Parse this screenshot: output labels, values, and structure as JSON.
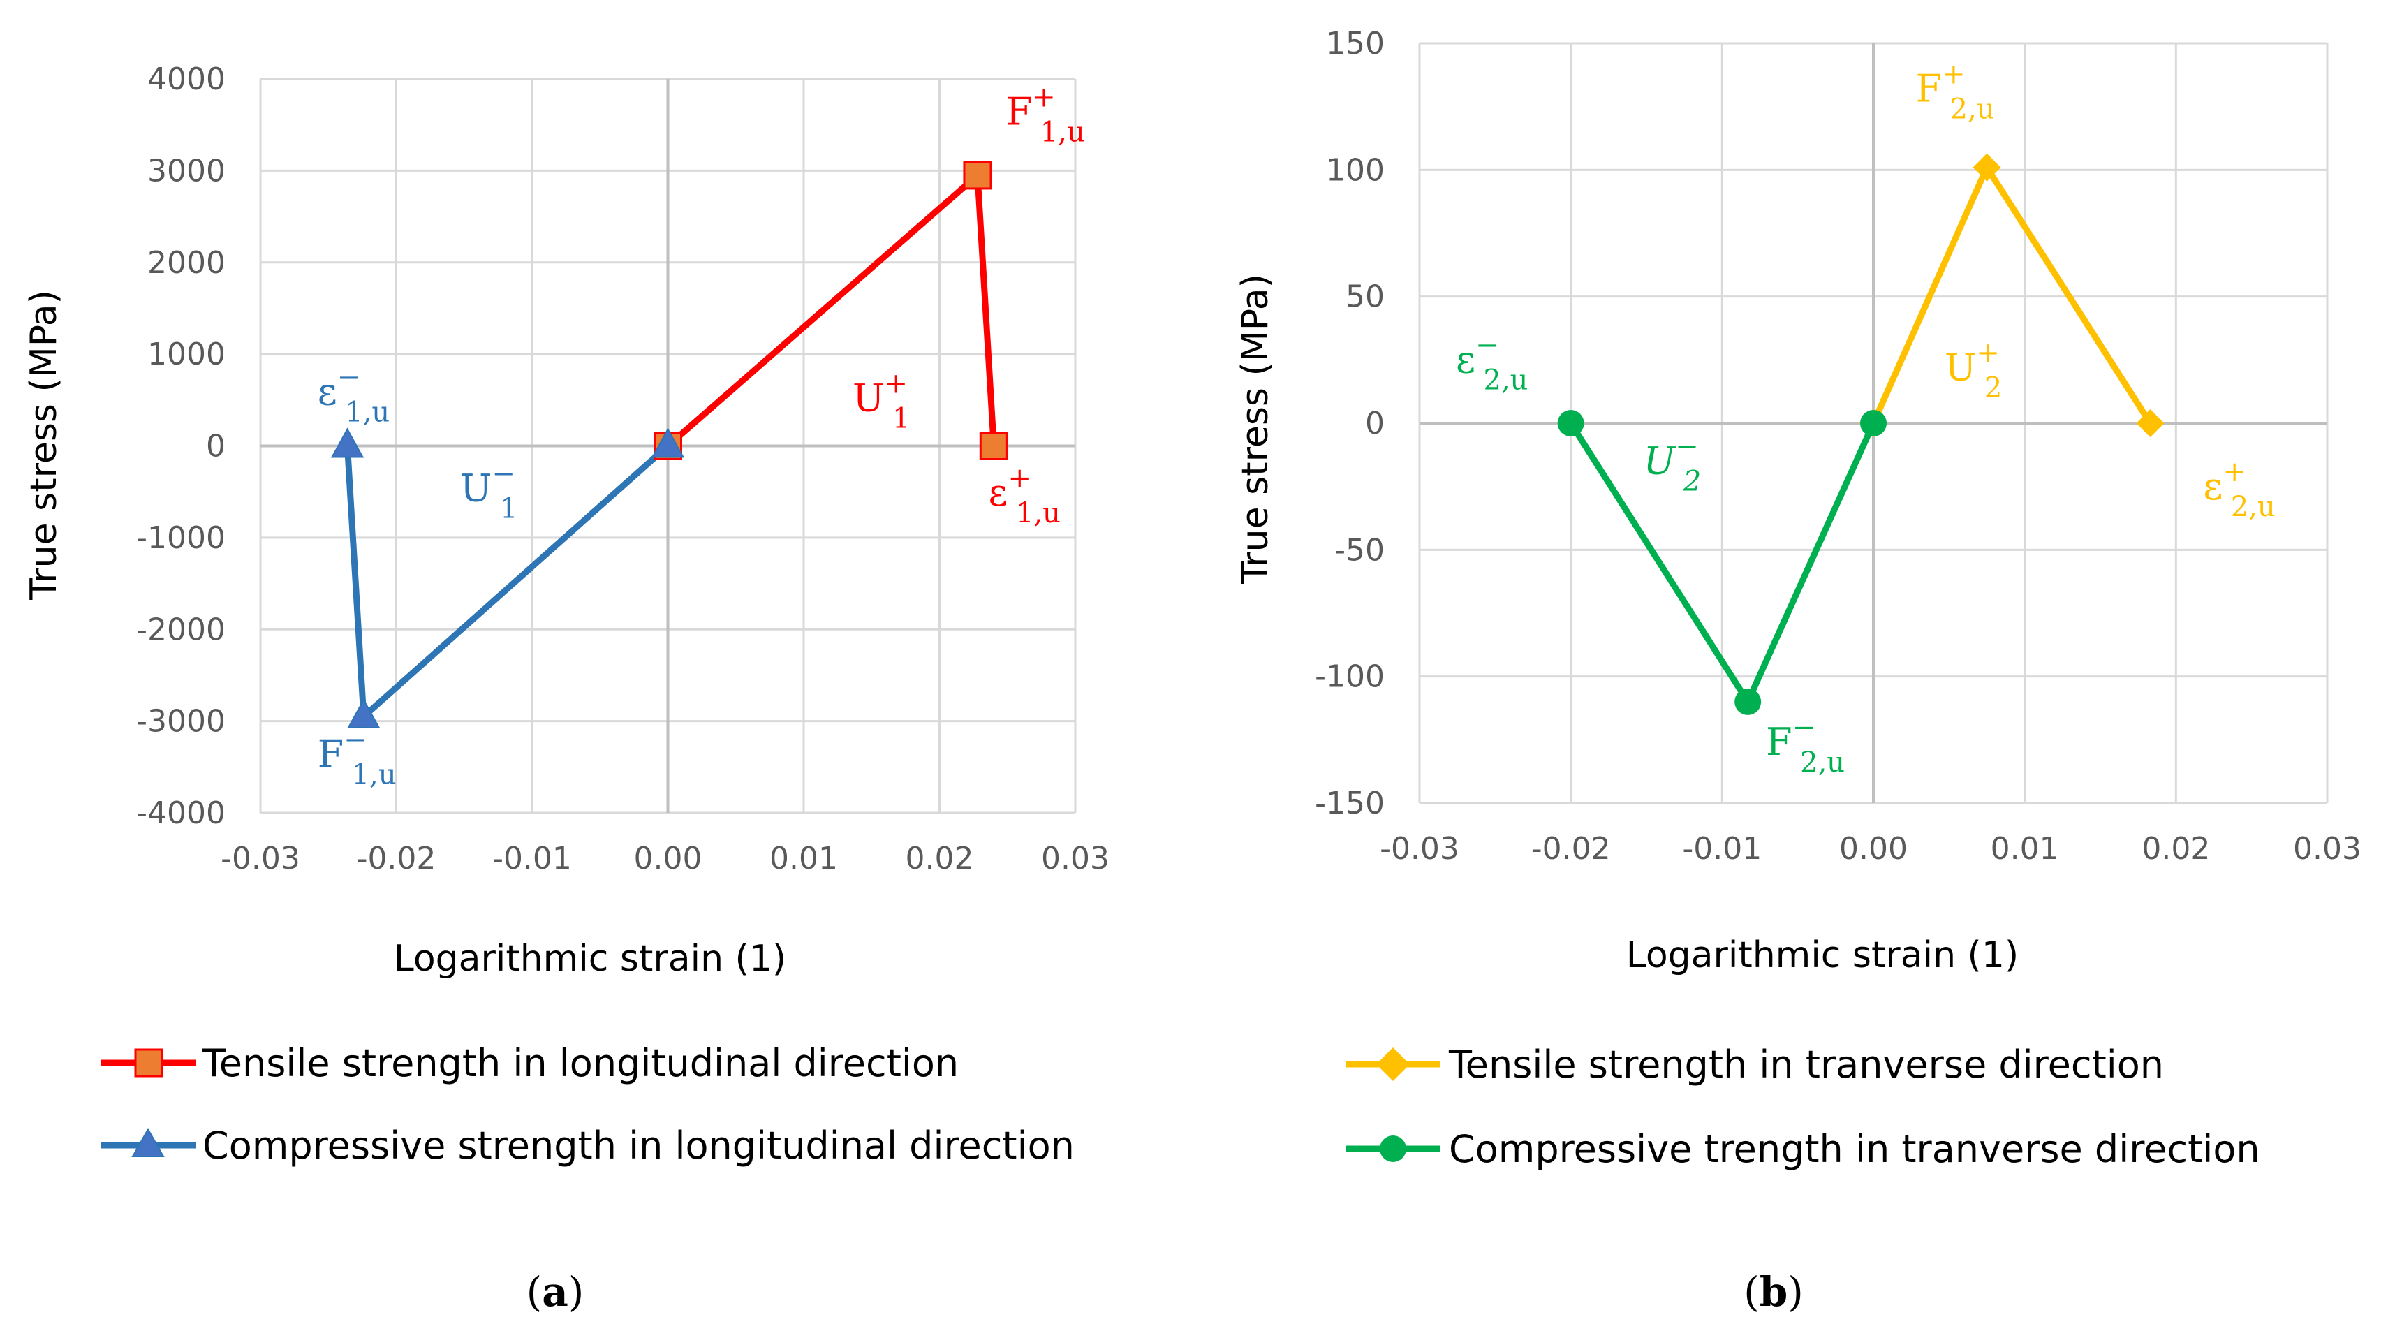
{
  "chart_data": [
    {
      "type": "line",
      "panel_label": "a",
      "xlabel": "Logarithmic strain (1)",
      "ylabel": "True stress (MPa)",
      "xlim": [
        -0.03,
        0.03
      ],
      "ylim": [
        -4000,
        4000
      ],
      "xticks": [
        -0.03,
        -0.02,
        -0.01,
        0.0,
        0.01,
        0.02,
        0.03
      ],
      "xtick_labels": [
        "-0.03",
        "-0.02",
        "-0.01",
        "0.00",
        "0.01",
        "0.02",
        "0.03"
      ],
      "yticks": [
        4000,
        3000,
        2000,
        1000,
        0,
        -1000,
        -2000,
        -3000,
        -4000
      ],
      "ytick_labels": [
        "4000",
        "3000",
        "2000",
        "1000",
        "0",
        "-1000",
        "-2000",
        "-3000",
        "-4000"
      ],
      "grid": true,
      "legend_position": "bottom",
      "series": [
        {
          "name": "Tensile strength in longitudinal direction",
          "color": "#ff0000",
          "marker": "square",
          "marker_color": "#ed7d31",
          "x": [
            0.0,
            0.0228,
            0.024
          ],
          "y": [
            0,
            2950,
            0
          ]
        },
        {
          "name": "Compressive strength in longitudinal direction",
          "color": "#2e75b6",
          "marker": "triangle",
          "marker_color": "#4472c4",
          "x": [
            0.0,
            -0.0224,
            -0.0236
          ],
          "y": [
            0,
            -2950,
            0
          ]
        }
      ],
      "annotations": [
        {
          "base": "F",
          "sub": "1,u",
          "sup": "+",
          "color": "#ff0000",
          "x": 0.0249,
          "y": 3500
        },
        {
          "base": "ε",
          "sub": "1,u",
          "sup": "+",
          "color": "#ff0000",
          "x": 0.0236,
          "y": -650
        },
        {
          "base": "U",
          "sub": "1",
          "sup": "+",
          "color": "#ff0000",
          "x": 0.0136,
          "y": 380
        },
        {
          "base": "ε",
          "sub": "1,u",
          "sup": "−",
          "color": "#2e75b6",
          "x": -0.0258,
          "y": 450
        },
        {
          "base": "U",
          "sub": "1",
          "sup": "−",
          "color": "#2e75b6",
          "x": -0.0153,
          "y": -600
        },
        {
          "base": "F",
          "sub": "1,u",
          "sup": "−",
          "color": "#2e75b6",
          "x": -0.0258,
          "y": -3500
        }
      ]
    },
    {
      "type": "line",
      "panel_label": "b",
      "xlabel": "Logarithmic strain (1)",
      "ylabel": "True stress (MPa)",
      "xlim": [
        -0.03,
        0.03
      ],
      "ylim": [
        -150,
        150
      ],
      "xticks": [
        -0.03,
        -0.02,
        -0.01,
        0.0,
        0.01,
        0.02,
        0.03
      ],
      "xtick_labels": [
        "-0.03",
        "-0.02",
        "-0.01",
        "0.00",
        "0.01",
        "0.02",
        "0.03"
      ],
      "yticks": [
        150,
        100,
        50,
        0,
        -50,
        -100,
        -150
      ],
      "ytick_labels": [
        "150",
        "100",
        "50",
        "0",
        "-50",
        "-100",
        "-150"
      ],
      "grid": true,
      "legend_position": "bottom",
      "series": [
        {
          "name": "Tensile strength in tranverse direction",
          "color": "#ffc000",
          "marker": "diamond",
          "marker_color": "#ffc000",
          "x": [
            0.0,
            0.0075,
            0.0183
          ],
          "y": [
            0,
            101,
            0
          ]
        },
        {
          "name": "Compressive trength in tranverse direction",
          "color": "#00b050",
          "marker": "circle",
          "marker_color": "#00b050",
          "x": [
            0.0,
            -0.0083,
            -0.02
          ],
          "y": [
            0,
            -110,
            0
          ]
        }
      ],
      "annotations": [
        {
          "base": "F",
          "sub": "2,u",
          "sup": "+",
          "color": "#ffc000",
          "x": 0.0028,
          "y": 127
        },
        {
          "base": "U",
          "sub": "2",
          "sup": "+",
          "color": "#ffc000",
          "x": 0.0047,
          "y": 17
        },
        {
          "base": "ε",
          "sub": "2,u",
          "sup": "+",
          "color": "#ffc000",
          "x": 0.0218,
          "y": -30
        },
        {
          "base": "ε",
          "sub": "2,u",
          "sup": "−",
          "color": "#00b050",
          "x": -0.0276,
          "y": 20
        },
        {
          "base": "U",
          "sub": "2",
          "sup": "−",
          "color": "#00b050",
          "x": -0.0152,
          "y": -20
        },
        {
          "base": "F",
          "sub": "2,u",
          "sup": "−",
          "color": "#00b050",
          "x": -0.0071,
          "y": -131
        }
      ]
    }
  ]
}
